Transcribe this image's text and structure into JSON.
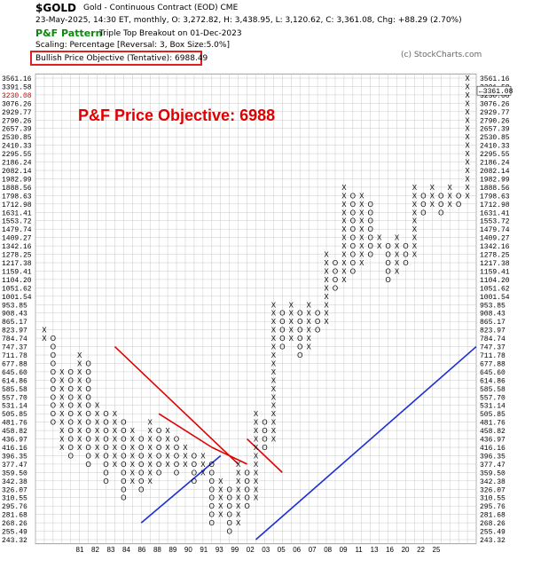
{
  "header": {
    "symbol": "$GOLD",
    "description": "Gold - Continuous Contract (EOD)  CME",
    "ohlc": "23-May-2025, 14:30 ET, monthly, O: 3,272.82, H: 3,438.95, L: 3,120.62, C: 3,361.08, Chg: +88.29 (2.70%)",
    "pattern_title": "P&F Pattern",
    "pattern_desc": "Triple Top Breakout on 01-Dec-2023",
    "scaling": "Scaling: Percentage [Reversal: 3, Box Size:5.0%]",
    "objective": "Bullish Price Objective (Tentative): 6988.49",
    "copyright": "(c) StockCharts.com"
  },
  "chart_data": {
    "type": "point-and-figure",
    "title": "P&F Price Objective: 6988",
    "price_levels": [
      "3561.16",
      "3391.58",
      "3230.08",
      "3076.26",
      "2929.77",
      "2790.26",
      "2657.39",
      "2530.85",
      "2410.33",
      "2295.55",
      "2186.24",
      "2082.14",
      "1982.99",
      "1888.56",
      "1798.63",
      "1712.98",
      "1631.41",
      "1553.72",
      "1479.74",
      "1409.27",
      "1342.16",
      "1278.25",
      "1217.38",
      "1159.41",
      "1104.20",
      "1051.62",
      "1001.54",
      "953.85",
      "908.43",
      "865.17",
      "823.97",
      "784.74",
      "747.37",
      "711.78",
      "677.88",
      "645.60",
      "614.86",
      "585.58",
      "557.70",
      "531.14",
      "505.85",
      "481.76",
      "458.82",
      "436.97",
      "416.16",
      "396.35",
      "377.47",
      "359.50",
      "342.38",
      "326.07",
      "310.55",
      "295.76",
      "281.68",
      "268.26",
      "255.49",
      "243.32"
    ],
    "current_price": "3361.08",
    "x_labels": [
      "81",
      "82",
      "83",
      "84",
      "86",
      "88",
      "89",
      "90",
      "91",
      "93",
      "99",
      "02",
      "03",
      "05",
      "06",
      "07",
      "08",
      "09",
      "11",
      "13",
      "16",
      "20",
      "22",
      "25"
    ],
    "columns": [
      {
        "type": "X",
        "start": "784.74",
        "end": "823.97"
      },
      {
        "type": "O",
        "start": "784.74",
        "end": "481.76"
      },
      {
        "type": "X",
        "start": "416.16",
        "end": "645.60"
      },
      {
        "type": "O",
        "start": "645.60",
        "end": "396.35"
      },
      {
        "type": "X",
        "start": "416.16",
        "end": "711.78"
      },
      {
        "type": "O",
        "start": "677.88",
        "end": "377.47"
      },
      {
        "type": "X",
        "start": "396.35",
        "end": "531.14"
      },
      {
        "type": "O",
        "start": "505.85",
        "end": "342.38"
      },
      {
        "type": "X",
        "start": "377.47",
        "end": "505.85"
      },
      {
        "type": "O",
        "start": "481.76",
        "end": "310.55"
      },
      {
        "type": "X",
        "start": "342.38",
        "end": "458.82"
      },
      {
        "type": "O",
        "start": "436.97",
        "end": "326.07"
      },
      {
        "type": "X",
        "start": "342.38",
        "end": "481.76"
      },
      {
        "type": "O",
        "start": "458.82",
        "end": "359.50"
      },
      {
        "type": "X",
        "start": "377.47",
        "end": "458.82"
      },
      {
        "type": "O",
        "start": "436.97",
        "end": "359.50"
      },
      {
        "type": "X",
        "start": "377.47",
        "end": "416.16"
      },
      {
        "type": "O",
        "start": "396.35",
        "end": "342.38"
      },
      {
        "type": "X",
        "start": "359.50",
        "end": "396.35"
      },
      {
        "type": "O",
        "start": "377.47",
        "end": "268.26"
      },
      {
        "type": "X",
        "start": "281.68",
        "end": "342.38"
      },
      {
        "type": "O",
        "start": "326.07",
        "end": "255.49"
      },
      {
        "type": "X",
        "start": "268.26",
        "end": "377.47"
      },
      {
        "type": "O",
        "start": "359.50",
        "end": "295.76"
      },
      {
        "type": "X",
        "start": "310.55",
        "end": "505.85"
      },
      {
        "type": "O",
        "start": "481.76",
        "end": "416.16"
      },
      {
        "type": "X",
        "start": "436.97",
        "end": "953.85"
      },
      {
        "type": "O",
        "start": "908.43",
        "end": "747.37"
      },
      {
        "type": "X",
        "start": "784.74",
        "end": "953.85"
      },
      {
        "type": "O",
        "start": "908.43",
        "end": "711.78"
      },
      {
        "type": "X",
        "start": "747.37",
        "end": "953.85"
      },
      {
        "type": "O",
        "start": "908.43",
        "end": "823.97"
      },
      {
        "type": "X",
        "start": "865.17",
        "end": "1278.25"
      },
      {
        "type": "O",
        "start": "1217.38",
        "end": "1051.62"
      },
      {
        "type": "X",
        "start": "1104.20",
        "end": "1888.56"
      },
      {
        "type": "O",
        "start": "1798.63",
        "end": "1159.41"
      },
      {
        "type": "X",
        "start": "1217.38",
        "end": "1798.63"
      },
      {
        "type": "O",
        "start": "1712.98",
        "end": "1278.25"
      },
      {
        "type": "X",
        "start": "1342.16",
        "end": "1409.27"
      },
      {
        "type": "O",
        "start": "1342.16",
        "end": "1104.20"
      },
      {
        "type": "X",
        "start": "1159.41",
        "end": "1409.27"
      },
      {
        "type": "O",
        "start": "1342.16",
        "end": "1217.38"
      },
      {
        "type": "X",
        "start": "1278.25",
        "end": "1888.56"
      },
      {
        "type": "O",
        "start": "1798.63",
        "end": "1631.41"
      },
      {
        "type": "X",
        "start": "1712.98",
        "end": "1888.56"
      },
      {
        "type": "O",
        "start": "1798.63",
        "end": "1631.41"
      },
      {
        "type": "X",
        "start": "1712.98",
        "end": "1888.56"
      },
      {
        "type": "O",
        "start": "1798.63",
        "end": "1712.98"
      },
      {
        "type": "X",
        "start": "1798.63",
        "end": "3561.16"
      }
    ],
    "trendlines": [
      {
        "color": "#e00000",
        "kind": "resistance"
      },
      {
        "color": "#e00000",
        "kind": "resistance"
      },
      {
        "color": "#e00000",
        "kind": "resistance"
      },
      {
        "color": "#e00000",
        "kind": "resistance"
      },
      {
        "color": "#1a2fd4",
        "kind": "support"
      },
      {
        "color": "#1a2fd4",
        "kind": "support"
      }
    ]
  },
  "colors": {
    "x_mark": "#000000",
    "o_mark": "#000000",
    "month_mark": "#c00000",
    "title": "#e00000",
    "support": "#1a2fd4",
    "resistance": "#e00000",
    "grid": "#c8c8c8"
  }
}
